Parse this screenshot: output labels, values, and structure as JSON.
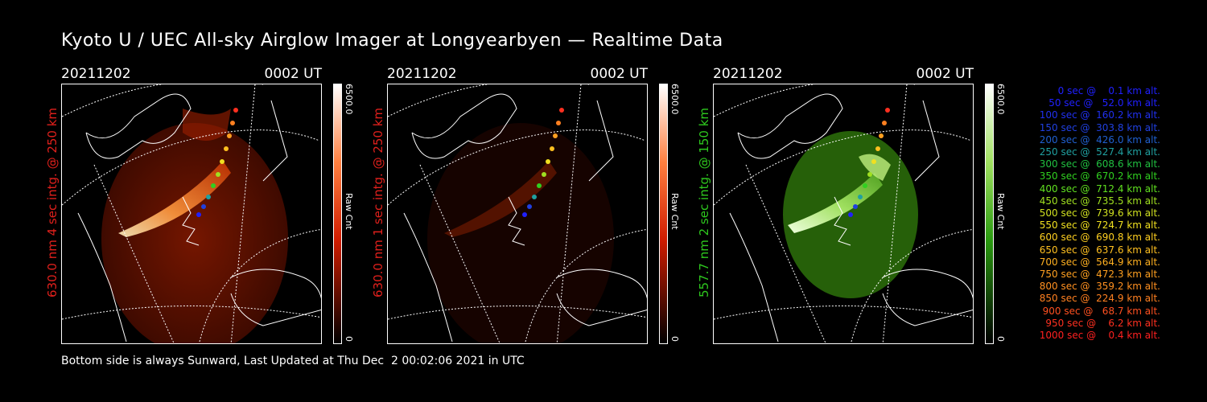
{
  "title": "Kyoto U / UEC All-sky Airglow Imager at Longyearbyen — Realtime Data",
  "panels": [
    {
      "date": "20211202",
      "time": "0002 UT",
      "ylabel": "630.0 nm 4 sec intg. @ 250 km",
      "ylabel_color": "#e0201c",
      "cbar_max": "6500.0",
      "cbar_unit": "Raw Cnt",
      "cbar_min": "0",
      "cbar_color": "#d01c00",
      "glow_color": "#7a1200"
    },
    {
      "date": "20211202",
      "time": "0002 UT",
      "ylabel": "630.0 nm 1 sec intg. @ 250 km",
      "ylabel_color": "#e0201c",
      "cbar_max": "6500.0",
      "cbar_unit": "Raw Cnt",
      "cbar_min": "0",
      "cbar_color": "#d01c00",
      "glow_color": "#240600"
    },
    {
      "date": "20211202",
      "time": "0002 UT",
      "ylabel": "557.7 nm 2 sec intg. @ 150 km",
      "ylabel_color": "#2ec81e",
      "cbar_max": "6500.0",
      "cbar_unit": "Raw Cnt",
      "cbar_min": "0",
      "cbar_color": "#2a9a10",
      "glow_color": "#2a6a0a"
    }
  ],
  "footer": "Bottom side is always Sunward, Last Updated at Thu Dec  2 00:02:06 2021 in UTC",
  "legend": [
    {
      "text": "   0 sec @    0.1 km alt.",
      "color": "#2020ff"
    },
    {
      "text": "  50 sec @   52.0 km alt.",
      "color": "#2020ff"
    },
    {
      "text": " 100 sec @  160.2 km alt.",
      "color": "#2030f0"
    },
    {
      "text": " 150 sec @  303.8 km alt.",
      "color": "#2040e0"
    },
    {
      "text": " 200 sec @  426.0 km alt.",
      "color": "#2060d0"
    },
    {
      "text": " 250 sec @  527.4 km alt.",
      "color": "#20a0a0"
    },
    {
      "text": " 300 sec @  608.6 km alt.",
      "color": "#20c040"
    },
    {
      "text": " 350 sec @  670.2 km alt.",
      "color": "#30d020"
    },
    {
      "text": " 400 sec @  712.4 km alt.",
      "color": "#60e020"
    },
    {
      "text": " 450 sec @  735.5 km alt.",
      "color": "#a0e020"
    },
    {
      "text": " 500 sec @  739.6 km alt.",
      "color": "#d0e020"
    },
    {
      "text": " 550 sec @  724.7 km alt.",
      "color": "#f0e020"
    },
    {
      "text": " 600 sec @  690.8 km alt.",
      "color": "#ffd020"
    },
    {
      "text": " 650 sec @  637.6 km alt.",
      "color": "#ffc020"
    },
    {
      "text": " 700 sec @  564.9 km alt.",
      "color": "#ffb020"
    },
    {
      "text": " 750 sec @  472.3 km alt.",
      "color": "#ffa020"
    },
    {
      "text": " 800 sec @  359.2 km alt.",
      "color": "#ff9020"
    },
    {
      "text": " 850 sec @  224.9 km alt.",
      "color": "#ff8020"
    },
    {
      "text": " 900 sec @   68.7 km alt.",
      "color": "#ff5020"
    },
    {
      "text": " 950 sec @    6.2 km alt.",
      "color": "#ff3020"
    },
    {
      "text": "1000 sec @    0.4 km alt.",
      "color": "#ff2020"
    }
  ],
  "colors": {
    "background": "#000000",
    "text": "#ffffff"
  }
}
